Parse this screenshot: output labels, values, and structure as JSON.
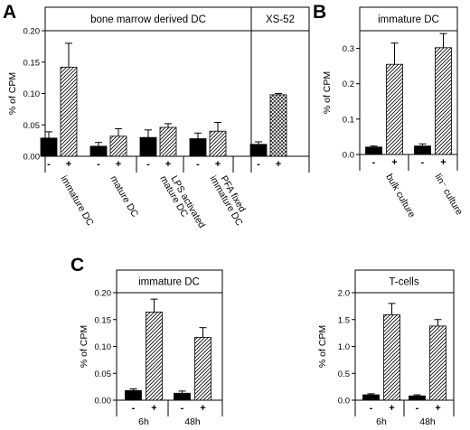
{
  "figure_labels": {
    "a": "A",
    "b": "B",
    "c": "C"
  },
  "chart_data": [
    {
      "type": "bar",
      "panel": "A",
      "header_sections": [
        "bone marrow derived DC",
        "XS-52"
      ],
      "ylabel": "% of CPM",
      "ylim": [
        0,
        0.2
      ],
      "yticks": [
        "0.00",
        "0.05",
        "0.10",
        "0.15",
        "0.20"
      ],
      "groups": [
        "immature DC",
        "mature DC",
        "mature DC LPS activated",
        "immature DC PFA fixed",
        ""
      ],
      "group_label_lines": [
        [
          "immature DC"
        ],
        [
          "mature DC"
        ],
        [
          "mature DC",
          "LPS activated"
        ],
        [
          "immature DC",
          "PFA fixed"
        ],
        []
      ],
      "conditions": [
        "-",
        "+"
      ],
      "series": [
        {
          "values": [
            0.029,
            0.016,
            0.03,
            0.028,
            0.019
          ],
          "errors": [
            0.01,
            0.006,
            0.012,
            0.009,
            0.004
          ]
        },
        {
          "values": [
            0.142,
            0.032,
            0.046,
            0.04,
            0.098
          ],
          "errors": [
            0.038,
            0.012,
            0.006,
            0.014,
            0.002
          ]
        }
      ]
    },
    {
      "type": "bar",
      "panel": "B",
      "header_sections": [
        "immature DC"
      ],
      "ylabel": "% of CPM",
      "ylim": [
        0,
        0.35
      ],
      "yticks": [
        "0.0",
        "0.1",
        "0.2",
        "0.3"
      ],
      "groups": [
        "bulk culture",
        "lin⁻ culture"
      ],
      "group_label_lines": [
        [
          "bulk culture"
        ],
        [
          "lin⁻ culture"
        ]
      ],
      "conditions": [
        "-",
        "+"
      ],
      "series": [
        {
          "values": [
            0.021,
            0.024
          ],
          "errors": [
            0.003,
            0.006
          ]
        },
        {
          "values": [
            0.255,
            0.302
          ],
          "errors": [
            0.06,
            0.04
          ]
        }
      ]
    },
    {
      "type": "bar",
      "panel": "C",
      "header_sections": [
        "immature DC"
      ],
      "ylabel": "% of CPM",
      "ylim": [
        0,
        0.2
      ],
      "yticks": [
        "0.00",
        "0.05",
        "0.10",
        "0.15",
        "0.20"
      ],
      "groups": [
        "6h",
        "48h"
      ],
      "group_label_lines": [
        [
          "6h"
        ],
        [
          "48h"
        ]
      ],
      "conditions": [
        "-",
        "+"
      ],
      "series": [
        {
          "values": [
            0.018,
            0.013
          ],
          "errors": [
            0.003,
            0.004
          ]
        },
        {
          "values": [
            0.164,
            0.117
          ],
          "errors": [
            0.024,
            0.018
          ]
        }
      ]
    },
    {
      "type": "bar",
      "panel": "C",
      "header_sections": [
        "T-cells"
      ],
      "ylabel": "% of CPM",
      "ylim": [
        0,
        2.0
      ],
      "yticks": [
        "0.0",
        "0.5",
        "1.0",
        "1.5",
        "2.0"
      ],
      "groups": [
        "6h",
        "48h"
      ],
      "group_label_lines": [
        [
          "6h"
        ],
        [
          "48h"
        ]
      ],
      "conditions": [
        "-",
        "+"
      ],
      "series": [
        {
          "values": [
            0.1,
            0.08
          ],
          "errors": [
            0.02,
            0.02
          ]
        },
        {
          "values": [
            1.59,
            1.38
          ],
          "errors": [
            0.21,
            0.12
          ]
        }
      ]
    }
  ]
}
